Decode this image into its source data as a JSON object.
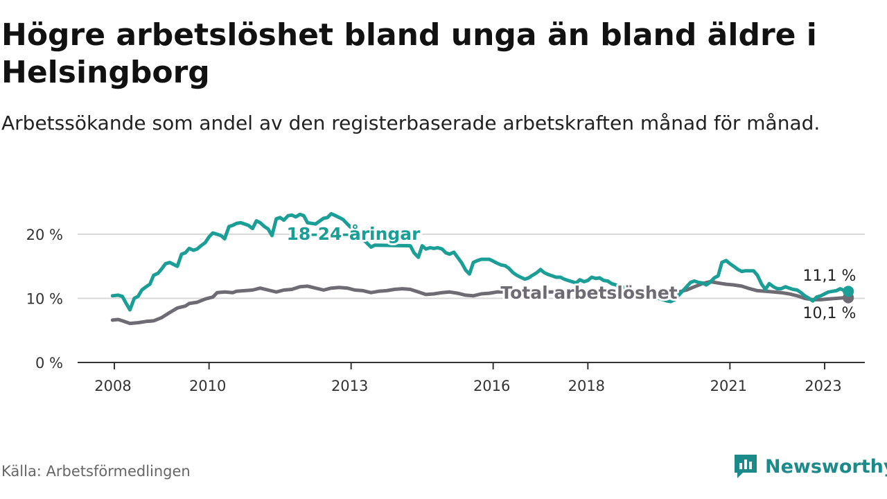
{
  "chart_data": {
    "type": "line",
    "title": "Högre arbetslöshet bland unga än bland äldre i Helsingborg",
    "subtitle": "Arbetssökande som andel av den registerbaserade arbetskraften månad för månad.",
    "xlabel": "",
    "ylabel": "",
    "ylim": [
      0,
      22
    ],
    "y_ticks": [
      {
        "value": 0,
        "label": "0 %"
      },
      {
        "value": 10,
        "label": "10 %"
      },
      {
        "value": 20,
        "label": "20 %"
      }
    ],
    "x_ticks": [
      {
        "value": 2008.0,
        "label": "2008"
      },
      {
        "value": 2010.0,
        "label": "2010"
      },
      {
        "value": 2013.0,
        "label": "2013"
      },
      {
        "value": 2016.0,
        "label": "2016"
      },
      {
        "value": 2018.0,
        "label": "2018"
      },
      {
        "value": 2021.0,
        "label": "2021"
      },
      {
        "value": 2023.0,
        "label": "2023"
      }
    ],
    "grid": true,
    "series": [
      {
        "name": "18-24-åringar",
        "color": "#1a9e96",
        "end_label": "11,1 %",
        "points": [
          [
            2007.96,
            10.4
          ],
          [
            2008.08,
            10.5
          ],
          [
            2008.17,
            10.3
          ],
          [
            2008.25,
            9.2
          ],
          [
            2008.33,
            8.2
          ],
          [
            2008.42,
            10.0
          ],
          [
            2008.5,
            10.3
          ],
          [
            2008.58,
            11.3
          ],
          [
            2008.67,
            11.8
          ],
          [
            2008.75,
            12.2
          ],
          [
            2008.83,
            13.6
          ],
          [
            2008.92,
            13.9
          ],
          [
            2009.0,
            14.6
          ],
          [
            2009.08,
            15.4
          ],
          [
            2009.17,
            15.6
          ],
          [
            2009.25,
            15.3
          ],
          [
            2009.33,
            15.0
          ],
          [
            2009.42,
            16.9
          ],
          [
            2009.5,
            17.1
          ],
          [
            2009.58,
            17.8
          ],
          [
            2009.67,
            17.5
          ],
          [
            2009.75,
            17.7
          ],
          [
            2009.83,
            18.2
          ],
          [
            2009.92,
            18.7
          ],
          [
            2010.0,
            19.6
          ],
          [
            2010.08,
            20.2
          ],
          [
            2010.17,
            20.0
          ],
          [
            2010.25,
            19.8
          ],
          [
            2010.33,
            19.3
          ],
          [
            2010.42,
            21.2
          ],
          [
            2010.5,
            21.4
          ],
          [
            2010.58,
            21.7
          ],
          [
            2010.67,
            21.8
          ],
          [
            2010.75,
            21.6
          ],
          [
            2010.83,
            21.4
          ],
          [
            2010.92,
            20.9
          ],
          [
            2011.0,
            22.1
          ],
          [
            2011.08,
            21.8
          ],
          [
            2011.17,
            21.2
          ],
          [
            2011.25,
            20.8
          ],
          [
            2011.33,
            19.8
          ],
          [
            2011.42,
            22.4
          ],
          [
            2011.5,
            22.6
          ],
          [
            2011.58,
            22.2
          ],
          [
            2011.67,
            22.9
          ],
          [
            2011.75,
            23.0
          ],
          [
            2011.83,
            22.7
          ],
          [
            2011.92,
            23.1
          ],
          [
            2012.0,
            22.9
          ],
          [
            2012.08,
            21.8
          ],
          [
            2012.25,
            21.6
          ],
          [
            2012.42,
            22.5
          ],
          [
            2012.5,
            22.6
          ],
          [
            2012.58,
            23.2
          ],
          [
            2012.67,
            22.9
          ],
          [
            2012.75,
            22.6
          ],
          [
            2012.83,
            22.3
          ],
          [
            2012.92,
            21.6
          ],
          [
            2013.42,
            18.0
          ],
          [
            2013.5,
            18.3
          ],
          [
            2014.25,
            18.2
          ],
          [
            2014.33,
            17.1
          ],
          [
            2014.42,
            16.4
          ],
          [
            2014.5,
            18.2
          ],
          [
            2014.58,
            17.7
          ],
          [
            2014.67,
            17.9
          ],
          [
            2014.75,
            17.8
          ],
          [
            2014.83,
            17.9
          ],
          [
            2014.92,
            17.7
          ],
          [
            2015.0,
            17.1
          ],
          [
            2015.08,
            16.9
          ],
          [
            2015.17,
            17.2
          ],
          [
            2015.25,
            16.4
          ],
          [
            2015.33,
            15.6
          ],
          [
            2015.42,
            14.4
          ],
          [
            2015.5,
            13.8
          ],
          [
            2015.58,
            15.6
          ],
          [
            2015.67,
            15.9
          ],
          [
            2015.75,
            16.1
          ],
          [
            2015.83,
            16.1
          ],
          [
            2015.92,
            16.1
          ],
          [
            2016.0,
            15.8
          ],
          [
            2016.08,
            15.5
          ],
          [
            2016.17,
            15.2
          ],
          [
            2016.25,
            15.1
          ],
          [
            2016.33,
            14.7
          ],
          [
            2016.42,
            14.0
          ],
          [
            2016.5,
            13.6
          ],
          [
            2016.58,
            13.3
          ],
          [
            2016.67,
            13.0
          ],
          [
            2016.75,
            13.2
          ],
          [
            2016.83,
            13.6
          ],
          [
            2016.92,
            14.0
          ],
          [
            2017.0,
            14.5
          ],
          [
            2017.08,
            14.0
          ],
          [
            2017.17,
            13.7
          ],
          [
            2017.25,
            13.5
          ],
          [
            2017.33,
            13.3
          ],
          [
            2017.42,
            13.3
          ],
          [
            2017.5,
            13.0
          ],
          [
            2017.58,
            12.8
          ],
          [
            2017.75,
            12.4
          ],
          [
            2017.83,
            12.9
          ],
          [
            2017.92,
            12.6
          ],
          [
            2018.0,
            12.8
          ],
          [
            2018.08,
            13.3
          ],
          [
            2018.17,
            13.1
          ],
          [
            2018.25,
            13.2
          ],
          [
            2018.33,
            12.8
          ],
          [
            2018.42,
            12.7
          ],
          [
            2018.5,
            12.3
          ],
          [
            2019.67,
            9.6
          ],
          [
            2019.75,
            9.5
          ],
          [
            2019.83,
            9.8
          ],
          [
            2020.17,
            12.5
          ],
          [
            2020.25,
            12.7
          ],
          [
            2020.33,
            12.5
          ],
          [
            2020.42,
            12.4
          ],
          [
            2020.5,
            12.1
          ],
          [
            2020.58,
            12.5
          ],
          [
            2020.67,
            13.2
          ],
          [
            2020.75,
            13.5
          ],
          [
            2020.83,
            15.6
          ],
          [
            2020.92,
            15.9
          ],
          [
            2021.0,
            15.4
          ],
          [
            2021.08,
            15.0
          ],
          [
            2021.17,
            14.5
          ],
          [
            2021.25,
            14.2
          ],
          [
            2021.33,
            14.3
          ],
          [
            2021.42,
            14.3
          ],
          [
            2021.5,
            14.3
          ],
          [
            2021.58,
            13.6
          ],
          [
            2021.67,
            12.2
          ],
          [
            2021.75,
            11.4
          ],
          [
            2021.83,
            12.3
          ],
          [
            2021.92,
            11.8
          ],
          [
            2022.0,
            11.5
          ],
          [
            2022.08,
            11.5
          ],
          [
            2022.17,
            11.8
          ],
          [
            2022.25,
            11.6
          ],
          [
            2022.33,
            11.4
          ],
          [
            2022.42,
            11.3
          ],
          [
            2022.5,
            10.9
          ],
          [
            2022.58,
            10.4
          ],
          [
            2022.67,
            10.0
          ],
          [
            2022.75,
            9.6
          ],
          [
            2022.83,
            10.2
          ],
          [
            2022.92,
            10.4
          ],
          [
            2023.0,
            10.7
          ],
          [
            2023.08,
            11.0
          ],
          [
            2023.17,
            11.1
          ],
          [
            2023.25,
            11.2
          ],
          [
            2023.33,
            11.5
          ],
          [
            2023.42,
            11.2
          ],
          [
            2023.5,
            11.1
          ]
        ]
      },
      {
        "name": "Total arbetslöshet",
        "color": "#6e6b73",
        "end_label": "10,1 %",
        "points": [
          [
            2007.96,
            6.6
          ],
          [
            2008.08,
            6.7
          ],
          [
            2008.17,
            6.5
          ],
          [
            2008.33,
            6.1
          ],
          [
            2008.5,
            6.2
          ],
          [
            2008.67,
            6.4
          ],
          [
            2008.83,
            6.5
          ],
          [
            2009.0,
            7.0
          ],
          [
            2009.17,
            7.8
          ],
          [
            2009.33,
            8.5
          ],
          [
            2009.5,
            8.8
          ],
          [
            2009.58,
            9.2
          ],
          [
            2009.75,
            9.4
          ],
          [
            2009.92,
            9.9
          ],
          [
            2010.08,
            10.2
          ],
          [
            2010.17,
            10.9
          ],
          [
            2010.33,
            11.0
          ],
          [
            2010.5,
            10.9
          ],
          [
            2010.58,
            11.1
          ],
          [
            2010.75,
            11.2
          ],
          [
            2010.92,
            11.3
          ],
          [
            2011.08,
            11.6
          ],
          [
            2011.25,
            11.3
          ],
          [
            2011.42,
            11.0
          ],
          [
            2011.58,
            11.3
          ],
          [
            2011.75,
            11.4
          ],
          [
            2011.92,
            11.8
          ],
          [
            2012.08,
            11.9
          ],
          [
            2012.25,
            11.6
          ],
          [
            2012.42,
            11.3
          ],
          [
            2012.58,
            11.6
          ],
          [
            2012.75,
            11.7
          ],
          [
            2012.92,
            11.6
          ],
          [
            2013.08,
            11.3
          ],
          [
            2013.25,
            11.2
          ],
          [
            2013.42,
            10.9
          ],
          [
            2013.58,
            11.1
          ],
          [
            2013.75,
            11.2
          ],
          [
            2013.92,
            11.4
          ],
          [
            2014.08,
            11.5
          ],
          [
            2014.25,
            11.4
          ],
          [
            2014.42,
            11.0
          ],
          [
            2014.58,
            10.6
          ],
          [
            2014.75,
            10.7
          ],
          [
            2014.92,
            10.9
          ],
          [
            2015.08,
            11.0
          ],
          [
            2015.25,
            10.8
          ],
          [
            2015.42,
            10.5
          ],
          [
            2015.58,
            10.4
          ],
          [
            2015.75,
            10.7
          ],
          [
            2015.92,
            10.8
          ],
          [
            2016.08,
            11.0
          ],
          [
            2016.25,
            11.0
          ],
          [
            2017.67,
            11.0
          ],
          [
            2019.92,
            11.0
          ],
          [
            2020.08,
            11.3
          ],
          [
            2020.25,
            11.8
          ],
          [
            2020.42,
            12.3
          ],
          [
            2020.58,
            12.6
          ],
          [
            2020.75,
            12.4
          ],
          [
            2020.92,
            12.2
          ],
          [
            2021.08,
            12.1
          ],
          [
            2021.25,
            11.9
          ],
          [
            2021.42,
            11.5
          ],
          [
            2021.58,
            11.2
          ],
          [
            2021.75,
            11.1
          ],
          [
            2021.92,
            11.0
          ],
          [
            2022.08,
            10.9
          ],
          [
            2022.25,
            10.7
          ],
          [
            2022.42,
            10.4
          ],
          [
            2022.58,
            10.0
          ],
          [
            2022.75,
            9.8
          ],
          [
            2022.92,
            9.8
          ],
          [
            2023.08,
            9.9
          ],
          [
            2023.25,
            10.0
          ],
          [
            2023.42,
            10.1
          ],
          [
            2023.5,
            10.1
          ]
        ]
      }
    ]
  },
  "source": "Källa: Arbetsförmedlingen",
  "brand": {
    "name": "Newsworthy",
    "icon": "newsworthy-logo-icon",
    "color": "#1d8a8a"
  },
  "colors": {
    "young": "#1a9e96",
    "total": "#6e6b73",
    "grid": "#d9d9d9",
    "axis": "#333333"
  }
}
